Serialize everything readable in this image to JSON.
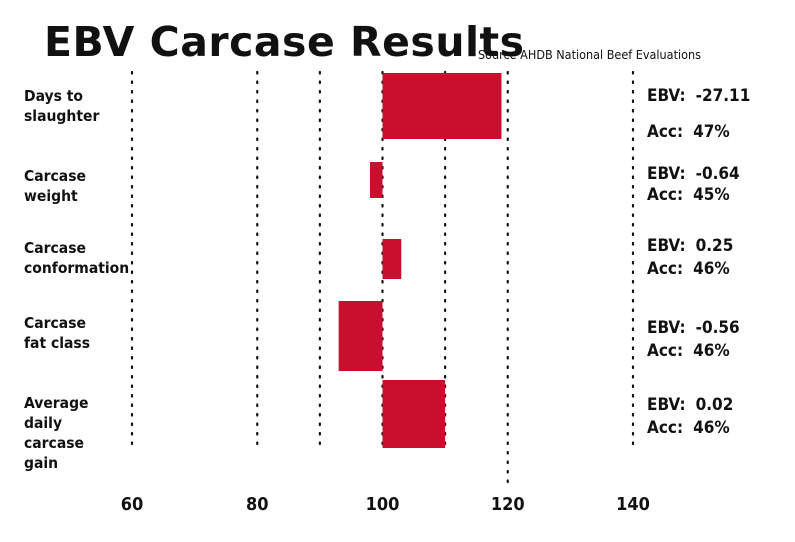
{
  "title": "EBV Carcase Results",
  "source": "Source AHDB National Beef Evaluations",
  "chart_data": {
    "type": "bar",
    "orientation": "horizontal",
    "baseline": 100,
    "xlim": [
      60,
      140
    ],
    "xticks": [
      60,
      80,
      100,
      120,
      140
    ],
    "bar_color": "#c8102e",
    "categories": [
      "Days to\nslaughter",
      "Carcase\nweight",
      "Carcase\nconformation",
      "Carcase\nfat class",
      "Average\ndaily\ncarcase\ngain"
    ],
    "values": [
      119,
      98,
      103,
      93,
      110
    ],
    "ebv": [
      "-27.11",
      "-0.64",
      "0.25",
      "-0.56",
      "0.02"
    ],
    "acc": [
      "47%",
      "45%",
      "46%",
      "46%",
      "46%"
    ],
    "ebv_label": "EBV:",
    "acc_label": "Acc:"
  }
}
